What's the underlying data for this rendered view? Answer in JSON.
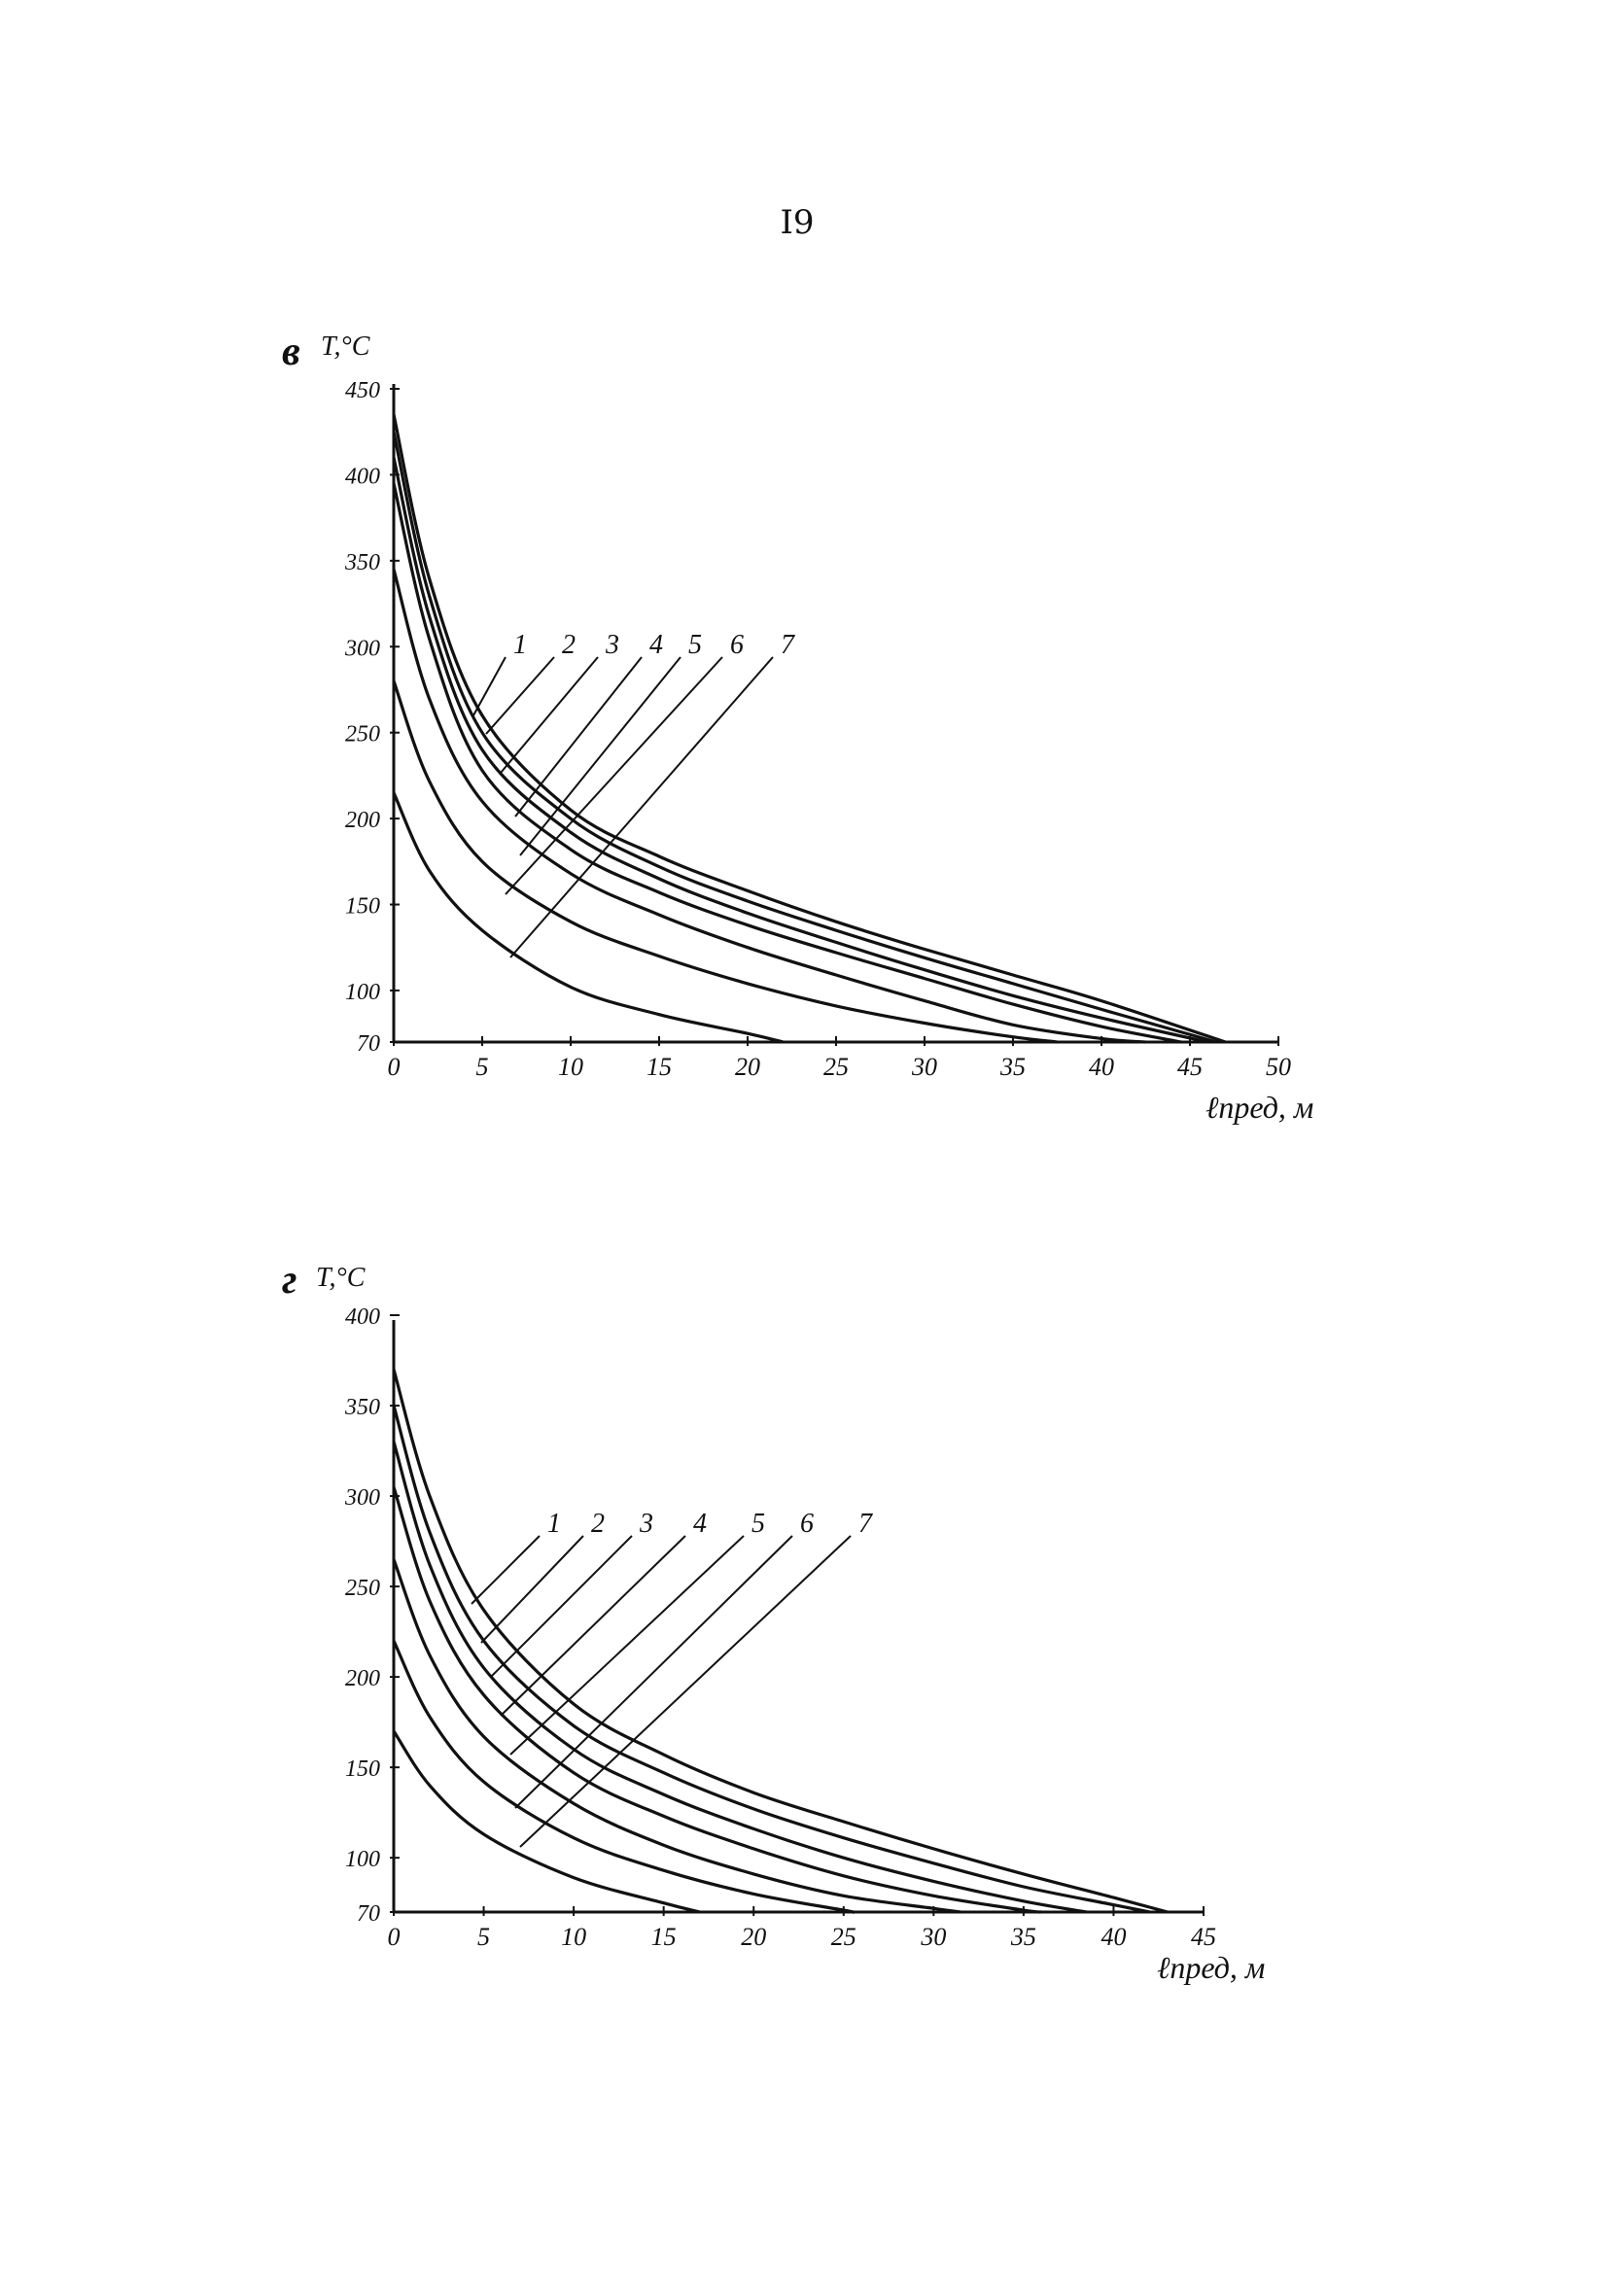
{
  "page_number": "I9",
  "chart_data": [
    {
      "type": "line",
      "panel_label": "в",
      "title": "",
      "xlabel": "ℓпред, м",
      "ylabel": "T,°C",
      "xlim": [
        0,
        50
      ],
      "ylim": [
        70,
        450
      ],
      "x_ticks": [
        "0",
        "5",
        "10",
        "15",
        "20",
        "25",
        "30",
        "35",
        "40",
        "45",
        "50"
      ],
      "y_ticks": [
        "70",
        "100",
        "150",
        "200",
        "250",
        "300",
        "350",
        "400",
        "450"
      ],
      "grid": false,
      "series": [
        {
          "name": "1",
          "x": [
            0,
            2,
            5,
            10,
            15,
            20,
            25,
            30,
            35,
            40,
            47
          ],
          "y": [
            435,
            340,
            260,
            205,
            178,
            158,
            140,
            124,
            109,
            94,
            70
          ]
        },
        {
          "name": "2",
          "x": [
            0,
            2,
            5,
            10,
            15,
            20,
            25,
            30,
            35,
            40,
            46.5
          ],
          "y": [
            425,
            330,
            250,
            200,
            172,
            152,
            135,
            119,
            104,
            89,
            70
          ]
        },
        {
          "name": "3",
          "x": [
            0,
            2,
            5,
            10,
            15,
            20,
            25,
            30,
            35,
            40,
            46
          ],
          "y": [
            410,
            318,
            240,
            192,
            165,
            145,
            128,
            112,
            97,
            84,
            70
          ]
        },
        {
          "name": "4",
          "x": [
            0,
            2,
            5,
            10,
            15,
            20,
            25,
            30,
            35,
            40,
            44.5
          ],
          "y": [
            395,
            305,
            228,
            182,
            157,
            138,
            122,
            107,
            92,
            79,
            70
          ]
        },
        {
          "name": "5",
          "x": [
            0,
            2,
            5,
            10,
            15,
            20,
            25,
            30,
            35,
            40,
            42.5
          ],
          "y": [
            345,
            270,
            210,
            168,
            144,
            125,
            109,
            94,
            80,
            72,
            70
          ]
        },
        {
          "name": "6",
          "x": [
            0,
            2,
            5,
            10,
            15,
            20,
            25,
            30,
            35,
            37.5
          ],
          "y": [
            280,
            222,
            175,
            140,
            120,
            104,
            91,
            81,
            73,
            70
          ]
        },
        {
          "name": "7",
          "x": [
            0,
            2,
            5,
            10,
            15,
            20,
            22
          ],
          "y": [
            215,
            170,
            135,
            102,
            86,
            75,
            70
          ]
        }
      ],
      "curve_labels": [
        "1",
        "2",
        "3",
        "4",
        "5",
        "6",
        "7"
      ]
    },
    {
      "type": "line",
      "panel_label": "г",
      "title": "",
      "xlabel": "ℓпред, м",
      "ylabel": "T,°C",
      "xlim": [
        0,
        45
      ],
      "ylim": [
        70,
        400
      ],
      "x_ticks": [
        "0",
        "5",
        "10",
        "15",
        "20",
        "25",
        "30",
        "35",
        "40",
        "45"
      ],
      "y_ticks": [
        "70",
        "100",
        "150",
        "200",
        "250",
        "300",
        "350",
        "400"
      ],
      "grid": false,
      "series": [
        {
          "name": "1",
          "x": [
            0,
            2,
            5,
            10,
            15,
            20,
            25,
            30,
            35,
            40,
            43
          ],
          "y": [
            370,
            300,
            237,
            185,
            157,
            136,
            120,
            105,
            91,
            78,
            70
          ]
        },
        {
          "name": "2",
          "x": [
            0,
            2,
            5,
            10,
            15,
            20,
            25,
            30,
            35,
            40,
            42
          ],
          "y": [
            350,
            280,
            220,
            173,
            147,
            127,
            111,
            97,
            84,
            74,
            70
          ]
        },
        {
          "name": "3",
          "x": [
            0,
            2,
            5,
            10,
            15,
            20,
            25,
            30,
            35,
            38.5
          ],
          "y": [
            330,
            262,
            205,
            160,
            135,
            116,
            100,
            87,
            76,
            70
          ]
        },
        {
          "name": "4",
          "x": [
            0,
            2,
            5,
            10,
            15,
            20,
            25,
            30,
            35,
            36
          ],
          "y": [
            305,
            242,
            190,
            147,
            123,
            105,
            90,
            79,
            71,
            70
          ]
        },
        {
          "name": "5",
          "x": [
            0,
            2,
            5,
            10,
            15,
            20,
            25,
            30,
            31.5
          ],
          "y": [
            265,
            212,
            167,
            130,
            107,
            91,
            79,
            72,
            70
          ]
        },
        {
          "name": "6",
          "x": [
            0,
            2,
            5,
            10,
            15,
            20,
            25,
            25.5
          ],
          "y": [
            220,
            178,
            142,
            111,
            93,
            80,
            71,
            70
          ]
        },
        {
          "name": "7",
          "x": [
            0,
            2,
            5,
            10,
            15,
            17
          ],
          "y": [
            170,
            140,
            113,
            89,
            75,
            70
          ]
        }
      ],
      "curve_labels": [
        "1",
        "2",
        "3",
        "4",
        "5",
        "6",
        "7"
      ]
    }
  ]
}
